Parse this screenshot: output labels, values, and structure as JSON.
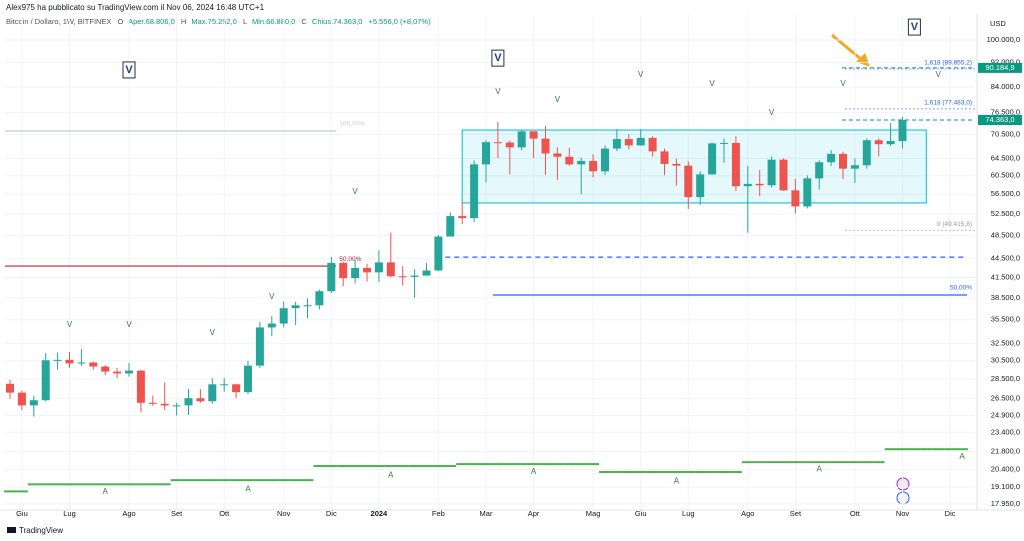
{
  "header": {
    "publisher": "Alex975 ha pubblicato su TradingView.com il Nov 06, 2024 16:48 UTC+1",
    "symbol": "Bitcoin / Dollaro, 1W, BITFINEX",
    "ohlc": [
      {
        "key": "O",
        "label": "Aper.68.806,0"
      },
      {
        "key": "H",
        "label": "Max.75.252,0"
      },
      {
        "key": "L",
        "label": "Min.66.880,0"
      },
      {
        "key": "C",
        "label": "Chius.74.363,0"
      }
    ],
    "change": "+5.556,0 (+8,07%)"
  },
  "footer": "TradingView",
  "chart_data": {
    "type": "candlestick",
    "y_unit": "USD",
    "log_scale": true,
    "grid": true,
    "up_color": "#26a69a",
    "down_color": "#ef5350",
    "categories": [
      null,
      "Giu",
      null,
      null,
      null,
      "Lug",
      null,
      null,
      null,
      null,
      "Ago",
      null,
      null,
      null,
      "Set",
      null,
      null,
      null,
      "Ott",
      null,
      null,
      null,
      null,
      "Nov",
      null,
      null,
      null,
      "Dic",
      null,
      null,
      null,
      "2024",
      null,
      null,
      null,
      null,
      "Feb",
      null,
      null,
      null,
      "Mar",
      null,
      null,
      null,
      "Apr",
      null,
      null,
      null,
      null,
      "Mag",
      null,
      null,
      null,
      "Giu",
      null,
      null,
      null,
      "Lug",
      null,
      null,
      null,
      null,
      "Ago",
      null,
      null,
      null,
      "Set",
      null,
      null,
      null,
      null,
      "Ott",
      null,
      null,
      null,
      "Nov",
      null,
      null,
      null,
      "Dic",
      null
    ],
    "open": [
      28000,
      27100,
      25850,
      26350,
      30550,
      30600,
      30200,
      30300,
      29850,
      29300,
      29100,
      29400,
      26100,
      26000,
      25850,
      25850,
      26550,
      26250,
      27950,
      27950,
      27150,
      29950,
      34500,
      35000,
      37050,
      37450,
      37450,
      39450,
      43800,
      41400,
      43000,
      42300,
      43900,
      41700,
      41600,
      41800,
      42600,
      48300,
      52100,
      51700,
      63100,
      68500,
      68400,
      67200,
      71300,
      69400,
      65700,
      64900,
      63100,
      63900,
      61500,
      66900,
      69300,
      67700,
      69600,
      66200,
      63200,
      62800,
      55900,
      60800,
      68200,
      68300,
      58200,
      58700,
      58400,
      64200,
      57300,
      54000,
      59900,
      63600,
      65600,
      62100,
      62900,
      69000,
      68000,
      68806,
      null,
      null,
      null,
      null,
      null
    ],
    "high": [
      28400,
      27300,
      26800,
      31400,
      31450,
      31500,
      31850,
      30400,
      30000,
      29700,
      30250,
      29500,
      26800,
      28150,
      26100,
      27500,
      27450,
      28600,
      28600,
      28000,
      30500,
      35250,
      35980,
      37950,
      37950,
      38400,
      39700,
      44800,
      44000,
      44300,
      43700,
      45900,
      49000,
      43300,
      42800,
      43800,
      48600,
      52800,
      54900,
      64000,
      69000,
      73800,
      68900,
      71700,
      71300,
      72800,
      67200,
      67100,
      64700,
      65500,
      67700,
      71900,
      70600,
      71900,
      70000,
      66900,
      64500,
      63800,
      61500,
      68400,
      69400,
      70000,
      62700,
      61800,
      65000,
      64500,
      59800,
      60600,
      64100,
      66500,
      66100,
      64500,
      69500,
      69500,
      73600,
      75252,
      null,
      null,
      null,
      null,
      null
    ],
    "low": [
      26500,
      25400,
      24800,
      26250,
      29500,
      29700,
      29950,
      29500,
      28900,
      28600,
      28750,
      25200,
      25800,
      25400,
      24900,
      24950,
      26100,
      26000,
      27200,
      26550,
      26950,
      29700,
      33400,
      34500,
      34800,
      35700,
      36900,
      39200,
      40200,
      40600,
      40900,
      40800,
      41500,
      40300,
      38500,
      41800,
      42500,
      48300,
      50600,
      50900,
      59000,
      64600,
      60800,
      66500,
      64600,
      60700,
      59600,
      62800,
      56500,
      60200,
      60700,
      66300,
      66700,
      67600,
      64900,
      60600,
      58300,
      53500,
      54300,
      60700,
      63500,
      57200,
      49000,
      56100,
      57900,
      57200,
      52600,
      53600,
      57500,
      62700,
      59800,
      58900,
      62100,
      65000,
      67500,
      66880,
      null,
      null,
      null,
      null,
      null
    ],
    "close": [
      27100,
      25850,
      26350,
      30550,
      30600,
      30200,
      30300,
      29850,
      29300,
      29100,
      29400,
      26100,
      26000,
      25850,
      25850,
      26550,
      26250,
      27950,
      27950,
      27150,
      29950,
      34500,
      35000,
      37050,
      37450,
      37450,
      39450,
      43800,
      41400,
      43000,
      42300,
      43900,
      41700,
      41600,
      41800,
      42600,
      48300,
      52100,
      51700,
      63100,
      68500,
      68400,
      67200,
      71300,
      69400,
      65700,
      64900,
      63100,
      63900,
      61500,
      66900,
      69300,
      67700,
      69600,
      66200,
      63200,
      62800,
      55900,
      60800,
      68200,
      68300,
      58200,
      58700,
      58400,
      64200,
      57300,
      54000,
      59900,
      63600,
      65600,
      62100,
      62900,
      69000,
      68000,
      68806,
      74363,
      null,
      null,
      null,
      null,
      null
    ],
    "ylim": [
      17550,
      110100
    ],
    "yticks": [
      {
        "value": 17950,
        "label": "17.950,0"
      },
      {
        "value": 19100,
        "label": "19.100,0"
      },
      {
        "value": 20400,
        "label": "20.400,0"
      },
      {
        "value": 21800,
        "label": "21.800,0"
      },
      {
        "value": 23400,
        "label": "23.400,0"
      },
      {
        "value": 24900,
        "label": "24.900,0"
      },
      {
        "value": 26500,
        "label": "26.500,0"
      },
      {
        "value": 28500,
        "label": "28.500,0"
      },
      {
        "value": 30500,
        "label": "30.500,0"
      },
      {
        "value": 32500,
        "label": "32.500,0"
      },
      {
        "value": 35500,
        "label": "35.500,0"
      },
      {
        "value": 38500,
        "label": "38.500,0"
      },
      {
        "value": 41500,
        "label": "41.500,0"
      },
      {
        "value": 44500,
        "label": "44.500,0"
      },
      {
        "value": 48500,
        "label": "48.500,0"
      },
      {
        "value": 52500,
        "label": "52.500,0"
      },
      {
        "value": 56500,
        "label": "56.500,0"
      },
      {
        "value": 60500,
        "label": "60.500,0"
      },
      {
        "value": 64500,
        "label": "64.500,0"
      },
      {
        "value": 70500,
        "label": "70.500,0"
      },
      {
        "value": 76500,
        "label": "76.500,0"
      },
      {
        "value": 84000,
        "label": "84.000,0"
      },
      {
        "value": 92000,
        "label": "92.000,0"
      },
      {
        "value": 100000,
        "label": "100.000,0"
      }
    ],
    "levels": {
      "color": "#4caf50",
      "values": [
        18800,
        18800,
        19300,
        19300,
        19300,
        19300,
        19300,
        19300,
        19300,
        19300,
        19300,
        19300,
        19300,
        19300,
        19600,
        19600,
        19600,
        19600,
        19600,
        19600,
        19600,
        19600,
        19600,
        19600,
        19600,
        19600,
        20650,
        20650,
        20650,
        20650,
        20650,
        20650,
        20650,
        20650,
        20650,
        20650,
        20650,
        20650,
        20800,
        20800,
        20800,
        20800,
        20800,
        20800,
        20800,
        20800,
        20800,
        20800,
        20800,
        20800,
        20200,
        20200,
        20200,
        20200,
        20200,
        20200,
        20200,
        20200,
        20200,
        20200,
        20200,
        20200,
        20950,
        20950,
        20950,
        20950,
        20950,
        20950,
        20950,
        20950,
        20950,
        20950,
        20950,
        20950,
        21980,
        21980,
        21980,
        21980,
        21980,
        21980,
        21980
      ]
    },
    "markers": [
      {
        "text": "V",
        "x": 5,
        "y": 34800,
        "boxed": false
      },
      {
        "text": "V",
        "x": 10,
        "y": 34800,
        "boxed": false
      },
      {
        "text": "V",
        "x": 17,
        "y": 33800,
        "boxed": false
      },
      {
        "text": "V",
        "x": 22,
        "y": 38600,
        "boxed": false
      },
      {
        "text": "V",
        "x": 29,
        "y": 57000,
        "boxed": false
      },
      {
        "text": "V",
        "x": 41,
        "y": 82500,
        "boxed": false
      },
      {
        "text": "V",
        "x": 46,
        "y": 80100,
        "boxed": false
      },
      {
        "text": "V",
        "x": 53,
        "y": 87800,
        "boxed": false
      },
      {
        "text": "V",
        "x": 59,
        "y": 85000,
        "boxed": false
      },
      {
        "text": "V",
        "x": 64,
        "y": 76300,
        "boxed": false
      },
      {
        "text": "V",
        "x": 70,
        "y": 85000,
        "boxed": false
      },
      {
        "text": "V",
        "x": 78,
        "y": 87800,
        "boxed": false
      },
      {
        "text": "V",
        "x": 10,
        "y": 89500,
        "boxed": true
      },
      {
        "text": "V",
        "x": 41,
        "y": 93500,
        "boxed": true
      },
      {
        "text": "V",
        "x": 76,
        "y": 104900,
        "boxed": true
      },
      {
        "text": "A",
        "x": 8,
        "y": 18750,
        "boxed": false
      },
      {
        "text": "A",
        "x": 20,
        "y": 18950,
        "boxed": false
      },
      {
        "text": "A",
        "x": 32,
        "y": 19950,
        "boxed": false
      },
      {
        "text": "A",
        "x": 44,
        "y": 20200,
        "boxed": false
      },
      {
        "text": "A",
        "x": 56,
        "y": 19500,
        "boxed": false
      },
      {
        "text": "A",
        "x": 68,
        "y": 20400,
        "boxed": false
      },
      {
        "text": "A",
        "x": 80,
        "y": 21350,
        "boxed": false
      }
    ],
    "lines": [
      {
        "value": 71400,
        "start": 0,
        "end": 27,
        "color": "#c8cdd4",
        "dashed": false,
        "label": "100,00%"
      },
      {
        "value": 43300,
        "start": 0,
        "end": 27,
        "color": "#b22833",
        "dashed": false,
        "label": "50,00%"
      },
      {
        "value": 44760,
        "start": 37,
        "end": 80,
        "color": "#2962ff",
        "dashed": true
      },
      {
        "value": 38900,
        "start": 41,
        "end": 80,
        "color": "#2962ff",
        "dashed": false,
        "label": "50,00%"
      }
    ],
    "zone": {
      "from": 38,
      "to": 77,
      "low": 54700,
      "high": 71650,
      "color": "#00bcd4"
    },
    "fib_labels": [
      {
        "label": "1,618 (89.855,2)",
        "value": 89855.2,
        "color": "#2962ff"
      },
      {
        "label": "1,618 (77.483,0)",
        "value": 77483,
        "color": "#2962ff"
      },
      {
        "label": "0 (49.415,8)",
        "value": 49415.8,
        "color": "#9598a1"
      }
    ],
    "price_labels": [
      {
        "label": "90.184,9",
        "value": 90184.9,
        "color": "#089981"
      },
      {
        "label": "74.363,0",
        "value": 74363,
        "color": "#089981"
      }
    ]
  }
}
